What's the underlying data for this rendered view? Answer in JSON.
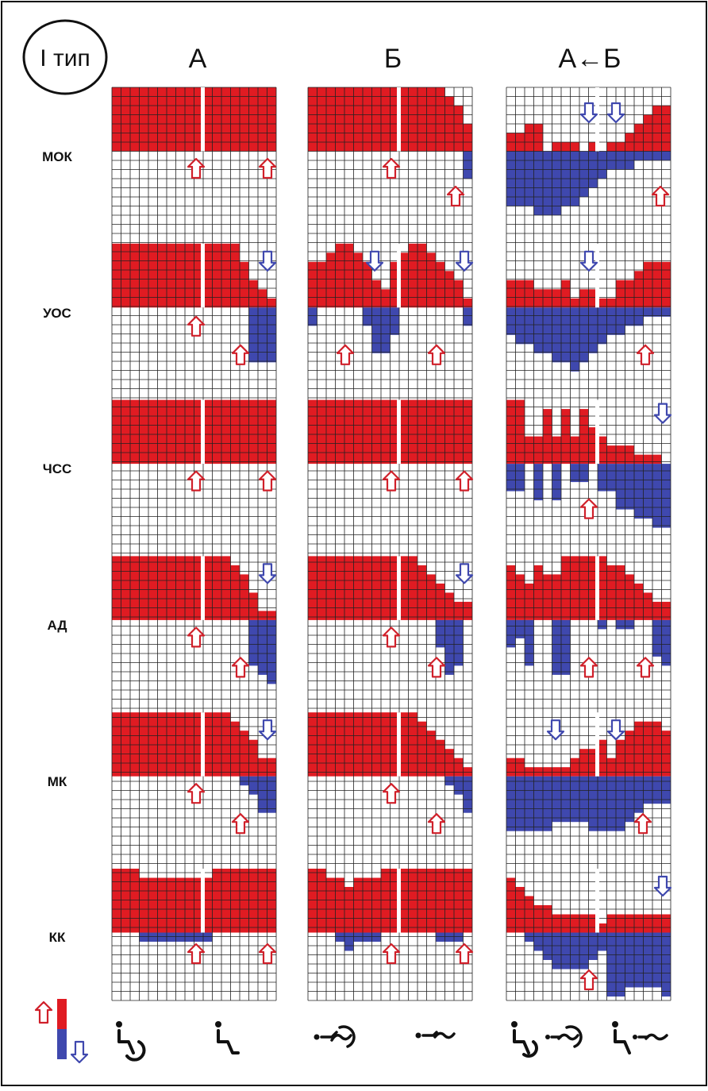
{
  "badge": "I тип",
  "columns": [
    {
      "title": "А"
    },
    {
      "title": "Б"
    },
    {
      "title": "А←Б"
    }
  ],
  "rows": [
    {
      "label": "МОК"
    },
    {
      "label": "УОС"
    },
    {
      "label": "ЧСС"
    },
    {
      "label": "АД"
    },
    {
      "label": "МК"
    },
    {
      "label": "КК"
    }
  ],
  "colors": {
    "increase": "#e01b22",
    "decrease": "#3f48ae",
    "grid": "#222222",
    "frame": "#111111"
  },
  "legend": {
    "up": "increase-arrow-icon",
    "down": "decrease-arrow-icon"
  },
  "footer_icons": [
    "wheelchair-icon",
    "seated-person-icon",
    "swimmer-icon",
    "swimmer-small-icon",
    "combined-icon",
    "combined-small-icon"
  ]
}
